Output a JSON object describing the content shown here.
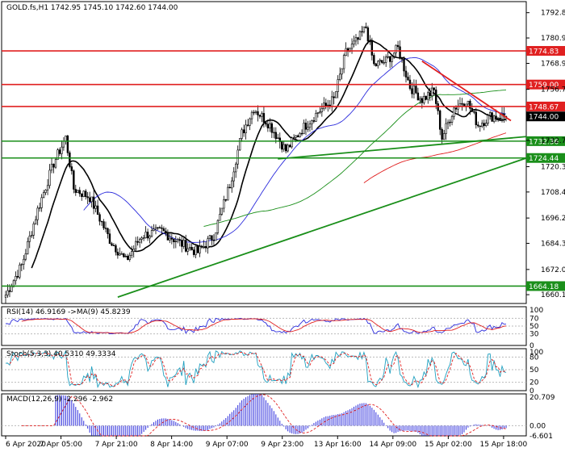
{
  "chart_data": {
    "type": "candlestick",
    "symbol_header": "GOLD.fs,H1  1742.95 1745.10 1742.60 1744.00",
    "price_axis": {
      "range": [
        1656,
        1798
      ],
      "ticks": [
        1792.8,
        1780.9,
        1768.95,
        1756.75,
        1744.85,
        1732.7,
        1720.35,
        1708.45,
        1696.2,
        1684.3,
        1672.0,
        1660.15
      ]
    },
    "last_price": "1744.00",
    "resistance_levels": [
      {
        "value": 1774.83,
        "label": "1774.83"
      },
      {
        "value": 1759.0,
        "label": "1759.00"
      },
      {
        "value": 1748.67,
        "label": "1748.67"
      }
    ],
    "support_levels": [
      {
        "value": 1732.36,
        "label": "1732.36"
      },
      {
        "value": 1724.44,
        "label": "1724.44"
      },
      {
        "value": 1664.18,
        "label": "1664.18"
      }
    ],
    "time_labels": [
      "6 Apr 2020",
      "7 Apr 05:00",
      "7 Apr 21:00",
      "8 Apr 14:00",
      "9 Apr 07:00",
      "9 Apr 23:00",
      "13 Apr 16:00",
      "14 Apr 09:00",
      "15 Apr 02:00",
      "15 Apr 18:00"
    ],
    "key_points": [
      {
        "x": 0,
        "y": 1660
      },
      {
        "x": 8,
        "y": 1674
      },
      {
        "x": 16,
        "y": 1700
      },
      {
        "x": 24,
        "y": 1722
      },
      {
        "x": 30,
        "y": 1734
      },
      {
        "x": 34,
        "y": 1710
      },
      {
        "x": 42,
        "y": 1706
      },
      {
        "x": 52,
        "y": 1686
      },
      {
        "x": 60,
        "y": 1676
      },
      {
        "x": 68,
        "y": 1688
      },
      {
        "x": 78,
        "y": 1690
      },
      {
        "x": 88,
        "y": 1684
      },
      {
        "x": 96,
        "y": 1680
      },
      {
        "x": 104,
        "y": 1688
      },
      {
        "x": 112,
        "y": 1712
      },
      {
        "x": 118,
        "y": 1736
      },
      {
        "x": 124,
        "y": 1748
      },
      {
        "x": 132,
        "y": 1740
      },
      {
        "x": 140,
        "y": 1728
      },
      {
        "x": 148,
        "y": 1738
      },
      {
        "x": 156,
        "y": 1746
      },
      {
        "x": 164,
        "y": 1752
      },
      {
        "x": 170,
        "y": 1774
      },
      {
        "x": 176,
        "y": 1780
      },
      {
        "x": 180,
        "y": 1786
      },
      {
        "x": 184,
        "y": 1768
      },
      {
        "x": 190,
        "y": 1770
      },
      {
        "x": 196,
        "y": 1776
      },
      {
        "x": 202,
        "y": 1758
      },
      {
        "x": 208,
        "y": 1752
      },
      {
        "x": 214,
        "y": 1756
      },
      {
        "x": 218,
        "y": 1734
      },
      {
        "x": 224,
        "y": 1748
      },
      {
        "x": 230,
        "y": 1752
      },
      {
        "x": 236,
        "y": 1740
      },
      {
        "x": 242,
        "y": 1744
      },
      {
        "x": 250,
        "y": 1744
      }
    ],
    "moving_averages": [
      {
        "name": "fast",
        "color": "#000000"
      },
      {
        "name": "medium",
        "color": "#2b2bdc"
      },
      {
        "name": "slow",
        "color": "#1a8f1a"
      },
      {
        "name": "long",
        "color": "#e02020"
      }
    ],
    "indicators": {
      "rsi": {
        "header": "RSI(14) 46.9169  ->MA(9) 45.8239",
        "range": [
          0,
          100
        ],
        "ticks": [
          100,
          70,
          50,
          30,
          0
        ]
      },
      "stoch": {
        "header": "Stoch(5,3,3) 40.5310 49.3334",
        "range": [
          0,
          100
        ],
        "ticks": [
          100,
          80,
          50,
          20,
          0
        ]
      },
      "macd": {
        "header": "MACD(12,26,9) -2.296 -2.962",
        "range": [
          -6.601,
          20.709
        ],
        "ticks": [
          "20.709",
          "0.00",
          "-6.601"
        ]
      }
    },
    "colors": {
      "bull": "#ffffff",
      "bear": "#000000",
      "resistance": "#e02020",
      "support": "#1a8f1a",
      "trend_down": "#e02020",
      "trend_up": "#1a8f1a",
      "rsi": "#2b2bdc",
      "rsi_ma": "#e02020",
      "stoch_main": "#20a0c0",
      "stoch_signal": "#e02020",
      "macd_hist": "#2b2bdc",
      "macd_signal": "#e02020"
    }
  }
}
